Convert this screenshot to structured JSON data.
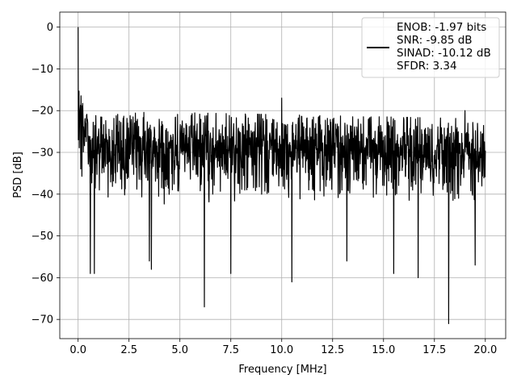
{
  "chart_data": {
    "type": "line",
    "title": "",
    "xlabel": "Frequency [MHz]",
    "ylabel": "PSD [dB]",
    "xlim": [
      -0.9,
      21.0
    ],
    "ylim": [
      -74.6,
      3.6
    ],
    "grid": true,
    "x_ticks": [
      0.0,
      2.5,
      5.0,
      7.5,
      10.0,
      12.5,
      15.0,
      17.5,
      20.0
    ],
    "x_tick_labels": [
      "0.0",
      "2.5",
      "5.0",
      "7.5",
      "10.0",
      "12.5",
      "15.0",
      "17.5",
      "20.0"
    ],
    "y_ticks": [
      0,
      -10,
      -20,
      -30,
      -40,
      -50,
      -60,
      -70
    ],
    "y_tick_labels": [
      "0",
      "−10",
      "−20",
      "−30",
      "−40",
      "−50",
      "−60",
      "−70"
    ],
    "legend_position": "top-right",
    "legend_lines": [
      "ENOB: -1.97 bits",
      "SNR: -9.85 dB",
      "SINAD: -10.12 dB",
      "SFDR: 3.34"
    ],
    "series": [
      {
        "color": "#000000",
        "description": "PSD trace over 0–20 MHz: peak near 0 dB at DC, decays to about -20 dB by 0.5 MHz, then a dense noise band fluctuating between about -20 and -40 dB with occasional dips.",
        "envelope_top": [
          [
            0.0,
            0.0
          ],
          [
            0.03,
            -10.0
          ],
          [
            0.1,
            -14.0
          ],
          [
            0.3,
            -18.0
          ],
          [
            0.5,
            -20.0
          ],
          [
            20.0,
            -22.0
          ]
        ],
        "noise_floor": [
          -40.0,
          -20.0
        ],
        "dips": [
          [
            0.6,
            -59.0
          ],
          [
            0.8,
            -59.0
          ],
          [
            3.5,
            -56.0
          ],
          [
            3.6,
            -58.0
          ],
          [
            6.2,
            -67.0
          ],
          [
            7.5,
            -59.0
          ],
          [
            10.5,
            -61.0
          ],
          [
            13.2,
            -56.0
          ],
          [
            15.5,
            -59.0
          ],
          [
            16.7,
            -60.0
          ],
          [
            18.2,
            -71.0
          ],
          [
            19.5,
            -57.0
          ]
        ],
        "spikes": [
          [
            10.0,
            -17.0
          ],
          [
            19.0,
            -20.0
          ]
        ]
      }
    ]
  }
}
